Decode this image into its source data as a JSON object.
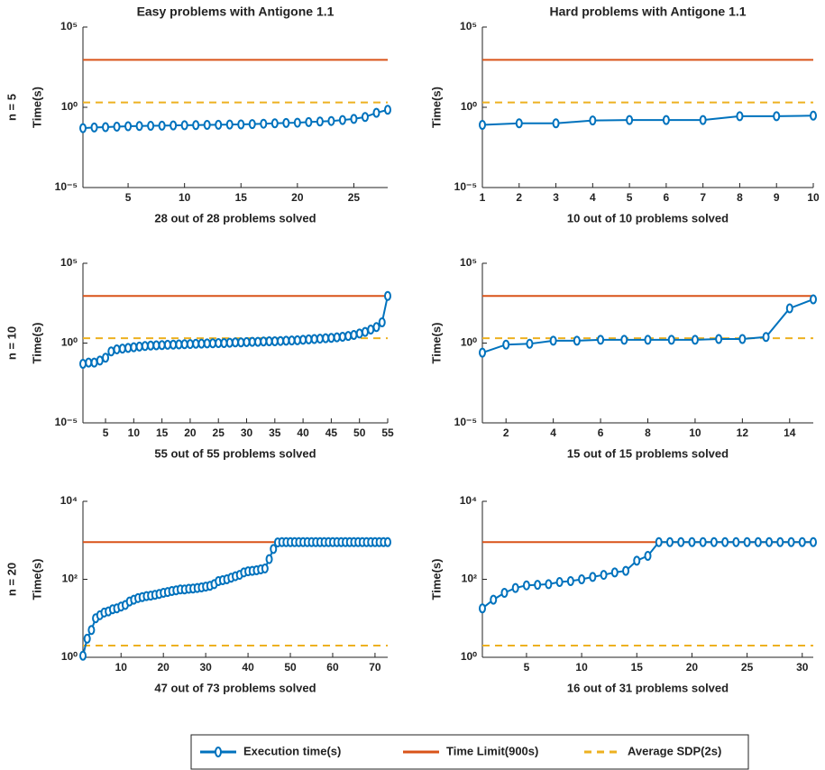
{
  "chart_data": [
    {
      "type": "line",
      "title": "Easy problems with Antigone 1.1",
      "row_label": "n = 5",
      "y_label": "Time(s)",
      "x_label": "28 out of 28 problems solved",
      "log_y": true,
      "x": [
        1,
        2,
        3,
        4,
        5,
        6,
        7,
        8,
        9,
        10,
        11,
        12,
        13,
        14,
        15,
        16,
        17,
        18,
        19,
        20,
        21,
        22,
        23,
        24,
        25,
        26,
        27,
        28
      ],
      "values": [
        0.05,
        0.055,
        0.058,
        0.062,
        0.066,
        0.068,
        0.07,
        0.072,
        0.074,
        0.076,
        0.078,
        0.08,
        0.082,
        0.084,
        0.086,
        0.09,
        0.095,
        0.1,
        0.105,
        0.11,
        0.12,
        0.13,
        0.14,
        0.16,
        0.19,
        0.25,
        0.45,
        0.7
      ],
      "xlim": [
        1,
        28
      ],
      "xticks": [
        5,
        10,
        15,
        20,
        25
      ],
      "ylim": [
        1e-05,
        100000
      ],
      "yticks": [
        {
          "value": 1e-05,
          "label": "10⁻⁵"
        },
        {
          "value": 1,
          "label": "10⁰"
        },
        {
          "value": 100000,
          "label": "10⁵"
        }
      ]
    },
    {
      "type": "line",
      "title": "Hard problems with Antigone 1.1",
      "y_label": "Time(s)",
      "x_label": "10 out of 10 problems solved",
      "log_y": true,
      "x": [
        1,
        2,
        3,
        4,
        5,
        6,
        7,
        8,
        9,
        10
      ],
      "values": [
        0.08,
        0.1,
        0.1,
        0.15,
        0.16,
        0.16,
        0.16,
        0.28,
        0.28,
        0.3
      ],
      "xlim": [
        1,
        10
      ],
      "xticks": [
        1,
        2,
        3,
        4,
        5,
        6,
        7,
        8,
        9,
        10
      ],
      "ylim": [
        1e-05,
        100000
      ],
      "yticks": [
        {
          "value": 1e-05,
          "label": "10⁻⁵"
        },
        {
          "value": 1,
          "label": "10⁰"
        },
        {
          "value": 100000,
          "label": "10⁵"
        }
      ]
    },
    {
      "type": "line",
      "row_label": "n = 10",
      "y_label": "Time(s)",
      "x_label": "55 out of 55 problems solved",
      "log_y": true,
      "x": [
        1,
        2,
        3,
        4,
        5,
        6,
        7,
        8,
        9,
        10,
        11,
        12,
        13,
        14,
        15,
        16,
        17,
        18,
        19,
        20,
        21,
        22,
        23,
        24,
        25,
        26,
        27,
        28,
        29,
        30,
        31,
        32,
        33,
        34,
        35,
        36,
        37,
        38,
        39,
        40,
        41,
        42,
        43,
        44,
        45,
        46,
        47,
        48,
        49,
        50,
        51,
        52,
        53,
        54,
        55
      ],
      "values": [
        0.05,
        0.06,
        0.06,
        0.08,
        0.12,
        0.3,
        0.4,
        0.45,
        0.5,
        0.55,
        0.6,
        0.65,
        0.7,
        0.72,
        0.75,
        0.78,
        0.8,
        0.82,
        0.85,
        0.87,
        0.9,
        0.92,
        0.95,
        0.97,
        1,
        1,
        1.05,
        1.1,
        1.1,
        1.15,
        1.2,
        1.2,
        1.25,
        1.3,
        1.3,
        1.35,
        1.4,
        1.45,
        1.5,
        1.6,
        1.7,
        1.8,
        1.9,
        2,
        2.1,
        2.3,
        2.5,
        2.8,
        3.2,
        4,
        5,
        7,
        10,
        20,
        900
      ],
      "xlim": [
        1,
        55
      ],
      "xticks": [
        5,
        10,
        15,
        20,
        25,
        30,
        35,
        40,
        45,
        50,
        55
      ],
      "ylim": [
        1e-05,
        100000
      ],
      "yticks": [
        {
          "value": 1e-05,
          "label": "10⁻⁵"
        },
        {
          "value": 1,
          "label": "10⁰"
        },
        {
          "value": 100000,
          "label": "10⁵"
        }
      ]
    },
    {
      "type": "line",
      "y_label": "Time(s)",
      "x_label": "15 out of 15 problems solved",
      "log_y": true,
      "x": [
        1,
        2,
        3,
        4,
        5,
        6,
        7,
        8,
        9,
        10,
        11,
        12,
        13,
        14,
        15
      ],
      "values": [
        0.25,
        0.8,
        0.9,
        1.4,
        1.4,
        1.6,
        1.6,
        1.6,
        1.6,
        1.6,
        1.8,
        1.8,
        2.4,
        150,
        550
      ],
      "xlim": [
        1,
        15
      ],
      "xticks": [
        2,
        4,
        6,
        8,
        10,
        12,
        14
      ],
      "ylim": [
        1e-05,
        100000
      ],
      "yticks": [
        {
          "value": 1e-05,
          "label": "10⁻⁵"
        },
        {
          "value": 1,
          "label": "10⁰"
        },
        {
          "value": 100000,
          "label": "10⁵"
        }
      ]
    },
    {
      "type": "line",
      "row_label": "n = 20",
      "y_label": "Time(s)",
      "x_label": "47 out of 73 problems solved",
      "log_y": true,
      "x": [
        1,
        2,
        3,
        4,
        5,
        6,
        7,
        8,
        9,
        10,
        11,
        12,
        13,
        14,
        15,
        16,
        17,
        18,
        19,
        20,
        21,
        22,
        23,
        24,
        25,
        26,
        27,
        28,
        29,
        30,
        31,
        32,
        33,
        34,
        35,
        36,
        37,
        38,
        39,
        40,
        41,
        42,
        43,
        44,
        45,
        46,
        47,
        48,
        49,
        50,
        51,
        52,
        53,
        54,
        55,
        56,
        57,
        58,
        59,
        60,
        61,
        62,
        63,
        64,
        65,
        66,
        67,
        68,
        69,
        70,
        71,
        72,
        73
      ],
      "values": [
        1.1,
        3,
        5,
        10,
        12,
        14,
        15,
        17,
        18,
        20,
        22,
        27,
        30,
        33,
        35,
        37,
        38,
        40,
        42,
        45,
        47,
        50,
        52,
        55,
        55,
        57,
        58,
        60,
        62,
        65,
        68,
        75,
        90,
        95,
        100,
        110,
        120,
        130,
        150,
        160,
        165,
        170,
        180,
        190,
        330,
        600,
        880,
        900,
        900,
        900,
        900,
        900,
        900,
        900,
        900,
        900,
        900,
        900,
        900,
        900,
        900,
        900,
        900,
        900,
        900,
        900,
        900,
        900,
        900,
        900,
        900,
        900,
        900
      ],
      "xlim": [
        1,
        73
      ],
      "xticks": [
        10,
        20,
        30,
        40,
        50,
        60,
        70
      ],
      "ylim": [
        1,
        10000
      ],
      "yticks": [
        {
          "value": 1,
          "label": "10⁰"
        },
        {
          "value": 100,
          "label": "10²"
        },
        {
          "value": 10000,
          "label": "10⁴"
        }
      ]
    },
    {
      "type": "line",
      "y_label": "Time(s)",
      "x_label": "16 out of 31 problems solved",
      "log_y": true,
      "x": [
        1,
        2,
        3,
        4,
        5,
        6,
        7,
        8,
        9,
        10,
        11,
        12,
        13,
        14,
        15,
        16,
        17,
        18,
        19,
        20,
        21,
        22,
        23,
        24,
        25,
        26,
        27,
        28,
        29,
        30,
        31
      ],
      "values": [
        18,
        30,
        45,
        60,
        70,
        72,
        75,
        85,
        90,
        100,
        115,
        130,
        150,
        165,
        300,
        400,
        900,
        900,
        900,
        900,
        900,
        900,
        900,
        900,
        900,
        900,
        900,
        900,
        900,
        900,
        900
      ],
      "xlim": [
        1,
        31
      ],
      "xticks": [
        5,
        10,
        15,
        20,
        25,
        30
      ],
      "ylim": [
        1,
        10000
      ],
      "yticks": [
        {
          "value": 1,
          "label": "10⁰"
        },
        {
          "value": 100,
          "label": "10²"
        },
        {
          "value": 10000,
          "label": "10⁴"
        }
      ]
    }
  ],
  "legend": [
    {
      "name": "Execution time(s)",
      "color": "#0072bd"
    },
    {
      "name": "Time Limit(900s)",
      "color": "#d95319",
      "value": 900
    },
    {
      "name": "Average SDP(2s)",
      "color": "#edb120",
      "value": 2,
      "dashed": true
    }
  ]
}
